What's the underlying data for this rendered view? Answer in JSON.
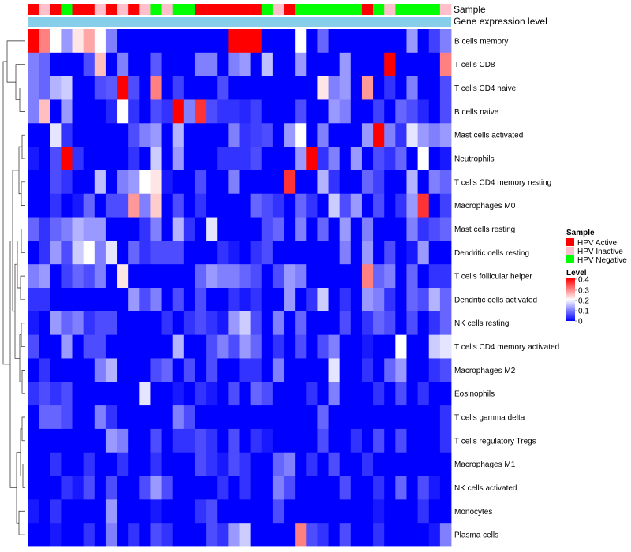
{
  "chart_data": {
    "type": "heatmap",
    "annotation_labels": [
      "Sample",
      "Gene expression level"
    ],
    "legend": {
      "sample_title": "Sample",
      "sample_items": [
        {
          "label": "HPV Active",
          "color": "#FF0000"
        },
        {
          "label": "HPV Inactive",
          "color": "#FFC0CB"
        },
        {
          "label": "HPV Negative",
          "color": "#00FF00"
        }
      ],
      "level_title": "Level",
      "level_ticks": [
        "0.4",
        "0.3",
        "0.2",
        "0.1",
        "0"
      ],
      "level_range": [
        0,
        0.4
      ],
      "colors": {
        "low": "#0000FF",
        "mid": "#FFFFFF",
        "high": "#FF0000"
      }
    },
    "sample_groups": [
      "A",
      "I",
      "A",
      "G",
      "A",
      "A",
      "I",
      "A",
      "I",
      "A",
      "I",
      "G",
      "I",
      "G",
      "G",
      "A",
      "A",
      "A",
      "A",
      "A",
      "A",
      "G",
      "I",
      "A",
      "G",
      "G",
      "G",
      "G",
      "G",
      "G",
      "A",
      "G",
      "I",
      "G",
      "G",
      "G",
      "G",
      "I"
    ],
    "gene_expression_color": "#87CEEB",
    "rows": [
      "B cells memory",
      "T cells CD8",
      "T cells CD4 naive",
      "B cells naive",
      "Mast cells activated",
      "Neutrophils",
      "T cells CD4 memory resting",
      "Macrophages M0",
      "Mast cells resting",
      "Dendritic cells resting",
      "T cells follicular helper",
      "Dendritic cells activated",
      "NK cells resting",
      "T cells CD4 memory activated",
      "Macrophages M2",
      "Eosinophils",
      "T cells gamma delta",
      "T cells regulatory  Tregs",
      "Macrophages M1",
      "NK cells activated",
      "Monocytes",
      "Plasma cells"
    ],
    "values": [
      [
        0.4,
        0.3,
        0.2,
        0.12,
        0.22,
        0.27,
        0.2,
        0.1,
        0,
        0,
        0,
        0,
        0,
        0,
        0,
        0,
        0,
        0,
        0.4,
        0.4,
        0.4,
        0,
        0,
        0,
        0.2,
        0,
        0.08,
        0,
        0,
        0,
        0,
        0,
        0,
        0,
        0.12,
        0,
        0.05,
        0.1
      ],
      [
        0.1,
        0.08,
        0,
        0,
        0,
        0.06,
        0.25,
        0,
        0.1,
        0,
        0,
        0.07,
        0,
        0,
        0,
        0.1,
        0.1,
        0,
        0.1,
        0.12,
        0,
        0.15,
        0,
        0,
        0.12,
        0,
        0,
        0,
        0.12,
        0,
        0,
        0,
        0.4,
        0,
        0,
        0,
        0,
        0.3
      ],
      [
        0.1,
        0.08,
        0.14,
        0.16,
        0,
        0,
        0.06,
        0.07,
        0.4,
        0.06,
        0,
        0.3,
        0,
        0.05,
        0,
        0,
        0,
        0.06,
        0,
        0,
        0,
        0,
        0,
        0,
        0,
        0,
        0.22,
        0.1,
        0.12,
        0,
        0.28,
        0,
        0.04,
        0,
        0.1,
        0,
        0,
        0.06
      ],
      [
        0.1,
        0.25,
        0,
        0.12,
        0,
        0,
        0,
        0.03,
        0.2,
        0.04,
        0,
        0.06,
        0.04,
        0.4,
        0.1,
        0.36,
        0.06,
        0.04,
        0.04,
        0.03,
        0.05,
        0,
        0,
        0,
        0.06,
        0,
        0,
        0.12,
        0.1,
        0,
        0,
        0.05,
        0,
        0.08,
        0.06,
        0.03,
        0,
        0.06
      ],
      [
        0,
        0,
        0.18,
        0.04,
        0,
        0,
        0,
        0,
        0,
        0.06,
        0.1,
        0.12,
        0,
        0.14,
        0,
        0,
        0,
        0,
        0.1,
        0.04,
        0.05,
        0.06,
        0,
        0.12,
        0.2,
        0,
        0.1,
        0,
        0,
        0,
        0.12,
        0.4,
        0.1,
        0.04,
        0.18,
        0.12,
        0.1,
        0.12
      ],
      [
        0.02,
        0,
        0.06,
        0.4,
        0.04,
        0,
        0,
        0,
        0,
        0.04,
        0,
        0.16,
        0,
        0.12,
        0,
        0,
        0,
        0.04,
        0.04,
        0.04,
        0.06,
        0,
        0,
        0,
        0.12,
        0.4,
        0.04,
        0.1,
        0,
        0.12,
        0,
        0.06,
        0.04,
        0.08,
        0,
        0.2,
        0,
        0.02
      ],
      [
        0,
        0,
        0.06,
        0.04,
        0,
        0,
        0.15,
        0,
        0.1,
        0.12,
        0.2,
        0.22,
        0.02,
        0,
        0,
        0.06,
        0,
        0,
        0.1,
        0,
        0,
        0,
        0,
        0.36,
        0,
        0,
        0.14,
        0.04,
        0,
        0,
        0.08,
        0.05,
        0,
        0,
        0.14,
        0,
        0.1,
        0.08
      ],
      [
        0,
        0,
        0.04,
        0,
        0.02,
        0.08,
        0,
        0.06,
        0.06,
        0.28,
        0.1,
        0.24,
        0,
        0.06,
        0,
        0.04,
        0,
        0,
        0,
        0,
        0.08,
        0.06,
        0.04,
        0,
        0.08,
        0.04,
        0,
        0.16,
        0.06,
        0.12,
        0,
        0.06,
        0,
        0.04,
        0.12,
        0.36,
        0,
        0.05
      ],
      [
        0.08,
        0.04,
        0.08,
        0.1,
        0.14,
        0.12,
        0.12,
        0,
        0,
        0,
        0.04,
        0.1,
        0,
        0.14,
        0.04,
        0,
        0.18,
        0,
        0,
        0,
        0,
        0.06,
        0.08,
        0,
        0.1,
        0,
        0.08,
        0,
        0.12,
        0,
        0.1,
        0,
        0,
        0,
        0.1,
        0.04,
        0.06,
        0.08
      ],
      [
        0,
        0.04,
        0.12,
        0.06,
        0.16,
        0.2,
        0.1,
        0.18,
        0,
        0.08,
        0.04,
        0.06,
        0.06,
        0.06,
        0,
        0,
        0,
        0.04,
        0.02,
        0,
        0.04,
        0.06,
        0,
        0,
        0,
        0,
        0,
        0,
        0.1,
        0,
        0.12,
        0,
        0.06,
        0,
        0.02,
        0.12,
        0,
        0
      ],
      [
        0.1,
        0.12,
        0,
        0.05,
        0.08,
        0.06,
        0.1,
        0,
        0.22,
        0,
        0,
        0,
        0,
        0,
        0,
        0.08,
        0.12,
        0.1,
        0.1,
        0.08,
        0.06,
        0,
        0.06,
        0.12,
        0.1,
        0,
        0,
        0,
        0,
        0,
        0.3,
        0.08,
        0.1,
        0,
        0.08,
        0,
        0.04,
        0.04
      ],
      [
        0.04,
        0.04,
        0,
        0,
        0,
        0,
        0,
        0,
        0,
        0.12,
        0.06,
        0.1,
        0,
        0.06,
        0,
        0.06,
        0,
        0,
        0.04,
        0.02,
        0.04,
        0,
        0,
        0.12,
        0,
        0.04,
        0.16,
        0,
        0.04,
        0,
        0.12,
        0.1,
        0.04,
        0,
        0.08,
        0.06,
        0.14,
        0.08
      ],
      [
        0.02,
        0,
        0.12,
        0.08,
        0.1,
        0.04,
        0.06,
        0.06,
        0,
        0,
        0,
        0,
        0.04,
        0,
        0.04,
        0.06,
        0.04,
        0.02,
        0.12,
        0.16,
        0.06,
        0,
        0.1,
        0,
        0.08,
        0,
        0,
        0,
        0.06,
        0,
        0.04,
        0.08,
        0.06,
        0,
        0.06,
        0,
        0.04,
        0.08
      ],
      [
        0.06,
        0,
        0,
        0.12,
        0,
        0.06,
        0.06,
        0,
        0,
        0,
        0,
        0,
        0,
        0.14,
        0,
        0,
        0.06,
        0.1,
        0.06,
        0.12,
        0.08,
        0,
        0.04,
        0,
        0.06,
        0,
        0.06,
        0.1,
        0,
        0,
        0.02,
        0,
        0,
        0.2,
        0,
        0,
        0.16,
        0.18
      ],
      [
        0,
        0.04,
        0,
        0,
        0,
        0,
        0.1,
        0.14,
        0,
        0,
        0,
        0.06,
        0.08,
        0,
        0.06,
        0,
        0.06,
        0,
        0,
        0.04,
        0.04,
        0,
        0.1,
        0,
        0,
        0,
        0,
        0.18,
        0,
        0,
        0.04,
        0,
        0.08,
        0.12,
        0,
        0,
        0.04,
        0.06
      ],
      [
        0.04,
        0.06,
        0.04,
        0.06,
        0,
        0,
        0,
        0,
        0,
        0,
        0.18,
        0,
        0,
        0.02,
        0,
        0.04,
        0.02,
        0,
        0.06,
        0,
        0.08,
        0.06,
        0,
        0,
        0,
        0.04,
        0,
        0.1,
        0,
        0,
        0,
        0.04,
        0,
        0.06,
        0,
        0.04,
        0,
        0
      ],
      [
        0,
        0.08,
        0.08,
        0.06,
        0,
        0,
        0.1,
        0.04,
        0,
        0,
        0,
        0,
        0,
        0.1,
        0.06,
        0,
        0,
        0,
        0,
        0,
        0,
        0,
        0,
        0,
        0,
        0,
        0.08,
        0,
        0,
        0,
        0,
        0,
        0,
        0,
        0,
        0,
        0,
        0.04
      ],
      [
        0,
        0,
        0,
        0,
        0,
        0,
        0,
        0.12,
        0.1,
        0,
        0,
        0.06,
        0,
        0.04,
        0.04,
        0.06,
        0.04,
        0,
        0.06,
        0,
        0.04,
        0.02,
        0,
        0,
        0,
        0,
        0.06,
        0,
        0,
        0.04,
        0,
        0.06,
        0,
        0.06,
        0,
        0,
        0,
        0.04
      ],
      [
        0,
        0,
        0.04,
        0,
        0,
        0.04,
        0,
        0,
        0.04,
        0,
        0,
        0.04,
        0,
        0,
        0,
        0.06,
        0.04,
        0.02,
        0.06,
        0.04,
        0,
        0,
        0.08,
        0.1,
        0,
        0.04,
        0,
        0.06,
        0,
        0,
        0.04,
        0,
        0,
        0,
        0,
        0,
        0,
        0
      ],
      [
        0,
        0,
        0,
        0.04,
        0.02,
        0.06,
        0,
        0.06,
        0,
        0,
        0.06,
        0.12,
        0.06,
        0,
        0,
        0,
        0,
        0.04,
        0,
        0.04,
        0,
        0,
        0.1,
        0.06,
        0,
        0,
        0,
        0,
        0.06,
        0,
        0,
        0.04,
        0,
        0.08,
        0,
        0.06,
        0.02,
        0
      ],
      [
        0.02,
        0,
        0.04,
        0,
        0,
        0,
        0,
        0.12,
        0,
        0,
        0,
        0.02,
        0,
        0,
        0,
        0.04,
        0.06,
        0,
        0,
        0,
        0,
        0,
        0.06,
        0,
        0,
        0,
        0,
        0,
        0,
        0,
        0,
        0.02,
        0,
        0,
        0,
        0.04,
        0,
        0
      ],
      [
        0,
        0,
        0.02,
        0,
        0,
        0.04,
        0,
        0.1,
        0,
        0.04,
        0,
        0.06,
        0.04,
        0,
        0,
        0,
        0.06,
        0.04,
        0.12,
        0.16,
        0,
        0,
        0,
        0,
        0.3,
        0.06,
        0.04,
        0,
        0.06,
        0,
        0,
        0.04,
        0,
        0,
        0,
        0,
        0.02,
        0.1
      ]
    ]
  }
}
